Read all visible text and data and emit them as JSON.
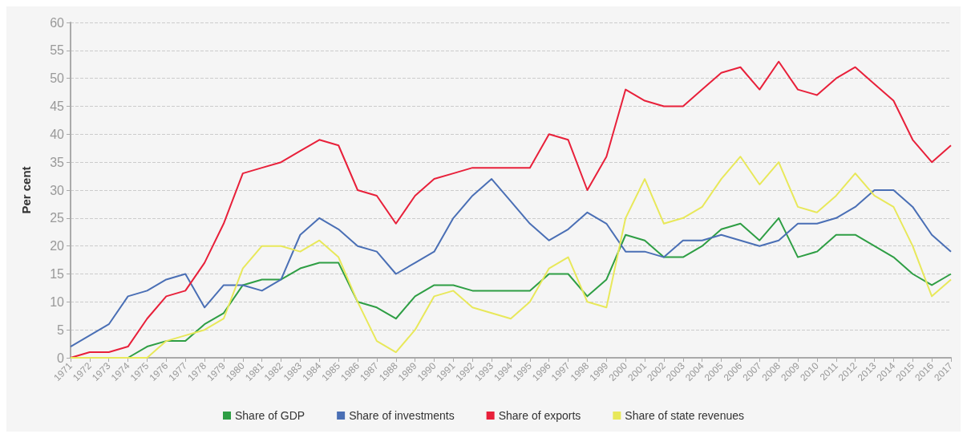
{
  "chart_data": {
    "type": "line",
    "ylabel": "Per cent",
    "categories": [
      "1971",
      "1972",
      "1973",
      "1974",
      "1975",
      "1976",
      "1977",
      "1978",
      "1979",
      "1980",
      "1981",
      "1982",
      "1983",
      "1984",
      "1985",
      "1986",
      "1987",
      "1988",
      "1989",
      "1990",
      "1991",
      "1992",
      "1993",
      "1994",
      "1995",
      "1996",
      "1997",
      "1998",
      "1999",
      "2000",
      "2001",
      "2002",
      "2003",
      "2004",
      "2005",
      "2006",
      "2007",
      "2008",
      "2009",
      "2010",
      "2011",
      "2012",
      "2013",
      "2014",
      "2015",
      "2016",
      "2017"
    ],
    "series": [
      {
        "name": "Share of GDP",
        "color": "#2e9e44",
        "values": [
          null,
          null,
          null,
          0,
          2,
          3,
          3,
          6,
          8,
          13,
          14,
          14,
          16,
          17,
          17,
          10,
          9,
          7,
          11,
          13,
          13,
          12,
          12,
          12,
          12,
          15,
          15,
          11,
          14,
          22,
          21,
          18,
          18,
          20,
          23,
          24,
          21,
          25,
          18,
          19,
          22,
          22,
          20,
          18,
          15,
          13,
          15
        ]
      },
      {
        "name": "Share of investments",
        "color": "#4a6fb5",
        "values": [
          2,
          4,
          6,
          11,
          12,
          14,
          15,
          9,
          13,
          13,
          12,
          14,
          22,
          25,
          23,
          20,
          19,
          15,
          17,
          19,
          25,
          29,
          32,
          28,
          24,
          21,
          23,
          26,
          24,
          19,
          19,
          18,
          21,
          21,
          22,
          21,
          20,
          21,
          24,
          24,
          25,
          27,
          30,
          30,
          27,
          22,
          19
        ]
      },
      {
        "name": "Share of exports",
        "color": "#e8203a",
        "values": [
          0,
          1,
          1,
          2,
          7,
          11,
          12,
          17,
          24,
          33,
          34,
          35,
          37,
          39,
          38,
          30,
          29,
          24,
          29,
          32,
          33,
          34,
          34,
          34,
          34,
          40,
          39,
          30,
          36,
          48,
          46,
          45,
          45,
          48,
          51,
          52,
          48,
          53,
          48,
          47,
          50,
          52,
          49,
          46,
          39,
          35,
          38
        ]
      },
      {
        "name": "Share of state revenues",
        "color": "#e8e85a",
        "values": [
          0,
          0,
          0,
          0,
          0,
          3,
          4,
          5,
          7,
          16,
          20,
          20,
          19,
          21,
          18,
          10,
          3,
          1,
          5,
          11,
          12,
          9,
          8,
          7,
          10,
          16,
          18,
          10,
          9,
          25,
          32,
          24,
          25,
          27,
          32,
          36,
          31,
          35,
          27,
          26,
          29,
          33,
          29,
          27,
          20,
          11,
          14
        ]
      }
    ],
    "ylim": [
      0,
      60
    ],
    "yticks": [
      0,
      5,
      10,
      15,
      20,
      25,
      30,
      35,
      40,
      45,
      50,
      55,
      60
    ],
    "grid": "y",
    "legend": "bottom",
    "marker": "none",
    "line_style": "solid"
  }
}
